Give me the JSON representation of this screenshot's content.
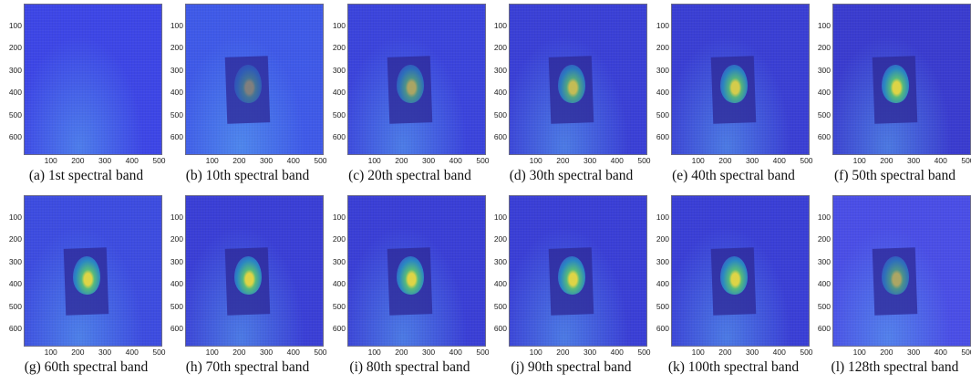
{
  "yticks": [
    "100",
    "200",
    "300",
    "400",
    "500",
    "600"
  ],
  "xticks": [
    "100",
    "200",
    "300",
    "400",
    "500"
  ],
  "panels": [
    {
      "caption": "(a) 1st spectral band",
      "bg": "#3d46e6",
      "object": false,
      "face": 0.0
    },
    {
      "caption": "(b) 10th spectral band",
      "bg": "#3f5ae8",
      "object": true,
      "face": 0.45
    },
    {
      "caption": "(c) 20th spectral band",
      "bg": "#3b44dc",
      "object": true,
      "face": 0.7
    },
    {
      "caption": "(d) 30th spectral band",
      "bg": "#3a40d6",
      "object": true,
      "face": 0.85
    },
    {
      "caption": "(e) 40th spectral band",
      "bg": "#3a3fd4",
      "object": true,
      "face": 0.95
    },
    {
      "caption": "(f) 50th spectral band",
      "bg": "#3a3ccf",
      "object": true,
      "face": 1.0
    },
    {
      "caption": "(g) 60th spectral band",
      "bg": "#3d4ce0",
      "object": true,
      "face": 1.0
    },
    {
      "caption": "(h) 70th spectral band",
      "bg": "#3a3fd6",
      "object": true,
      "face": 1.0
    },
    {
      "caption": "(i) 80th spectral band",
      "bg": "#3a3fd6",
      "object": true,
      "face": 1.0
    },
    {
      "caption": "(j) 90th spectral band",
      "bg": "#3a3fd6",
      "object": true,
      "face": 1.0
    },
    {
      "caption": "(k) 100th spectral band",
      "bg": "#3a3fd6",
      "object": true,
      "face": 1.0
    },
    {
      "caption": "(l) 128th spectral band",
      "bg": "#4a4ee6",
      "object": true,
      "face": 0.7
    }
  ]
}
